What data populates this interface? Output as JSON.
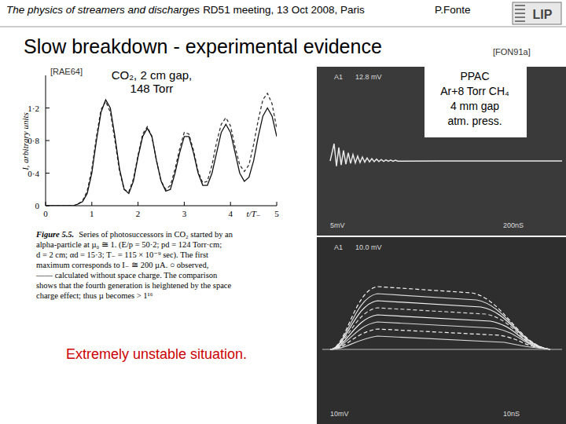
{
  "header": {
    "title": "The physics of streamers and discharges",
    "meeting": "RD51 meeting, 13 Oct 2008, Paris",
    "author": "P.Fonte",
    "logo": "LIP"
  },
  "slide_title": "Slow breakdown - experimental evidence",
  "refs": [
    "[RAE64]",
    "[FON91a]"
  ],
  "chart_data": {
    "type": "line",
    "annotation": [
      "CO₂, 2 cm gap,",
      "148 Torr"
    ],
    "x_label": "t/T₋",
    "y_label": "I, arbitrary units",
    "x": [
      0,
      0.1,
      0.2,
      0.3,
      0.4,
      0.5,
      0.6,
      0.7,
      0.8,
      0.9,
      1.0,
      1.1,
      1.2,
      1.3,
      1.4,
      1.5,
      1.6,
      1.7,
      1.8,
      1.9,
      2.0,
      2.1,
      2.2,
      2.3,
      2.4,
      2.5,
      2.6,
      2.7,
      2.8,
      2.9,
      3.0,
      3.1,
      3.2,
      3.3,
      3.4,
      3.5,
      3.6,
      3.7,
      3.8,
      3.9,
      4.0,
      4.1,
      4.2,
      4.3,
      4.4,
      4.5,
      4.6,
      4.7,
      4.8,
      4.9,
      5.0
    ],
    "xlim": [
      0,
      5
    ],
    "xticks": [
      0,
      1,
      2,
      3,
      4,
      5
    ],
    "ylim": [
      0,
      1.6
    ],
    "yticks": [
      0,
      {
        "value": 0.4,
        "label": "0·4"
      },
      {
        "value": 0.8,
        "label": "0·8"
      },
      {
        "value": 1.2,
        "label": "1·2"
      }
    ],
    "series": [
      {
        "color": "#333333",
        "line_style": "dashed",
        "values": [
          0,
          0,
          0,
          0,
          0,
          0,
          0,
          0.02,
          0.06,
          0.18,
          0.45,
          0.85,
          1.18,
          1.28,
          1.15,
          0.8,
          0.42,
          0.2,
          0.17,
          0.33,
          0.62,
          0.88,
          0.97,
          0.85,
          0.55,
          0.3,
          0.2,
          0.25,
          0.45,
          0.7,
          0.9,
          0.88,
          0.68,
          0.42,
          0.28,
          0.3,
          0.5,
          0.78,
          1.0,
          1.08,
          0.98,
          0.72,
          0.5,
          0.42,
          0.5,
          0.75,
          1.05,
          1.3,
          1.38,
          1.25,
          0.95
        ]
      },
      {
        "color": "#111111",
        "line_style": "solid",
        "values": [
          0,
          0,
          0,
          0,
          0,
          0,
          0,
          0.02,
          0.05,
          0.15,
          0.4,
          0.8,
          1.15,
          1.3,
          1.2,
          0.85,
          0.45,
          0.2,
          0.15,
          0.3,
          0.6,
          0.85,
          0.95,
          0.85,
          0.55,
          0.3,
          0.18,
          0.2,
          0.4,
          0.65,
          0.85,
          0.85,
          0.65,
          0.4,
          0.25,
          0.25,
          0.4,
          0.65,
          0.9,
          1.0,
          0.9,
          0.65,
          0.4,
          0.3,
          0.35,
          0.55,
          0.85,
          1.1,
          1.2,
          1.1,
          0.85
        ]
      }
    ]
  },
  "caption": [
    "Figure 5.5.",
    "Series of photosuccessors in CO₂ started by an",
    "alpha-particle at µ₀ ≅ 1. (E/p = 50·2; pd = 124 Torr·cm;",
    "d = 2 cm; αd = 15·3; T₋ = 115 × 10⁻⁹ sec). The first",
    "maximum corresponds to I₋ ≅ 200 µA.  ○ observed,",
    "—— calculated without space charge. The comparison",
    "shows that the fourth generation is heightened by the space",
    "charge effect; thus µ becomes > 1¹⁶"
  ],
  "note": "Extremely unstable situation.",
  "scope_top": {
    "labels": [
      "PPAC",
      "Ar+8 Torr CH₄",
      "4 mm gap",
      "atm. press."
    ],
    "readouts": [
      "A1",
      "12.8 mV",
      "5mV",
      "200nS"
    ]
  },
  "scope_bottom": {
    "readouts": [
      "A1",
      "10.0 mV",
      "10mV",
      "10nS"
    ]
  }
}
